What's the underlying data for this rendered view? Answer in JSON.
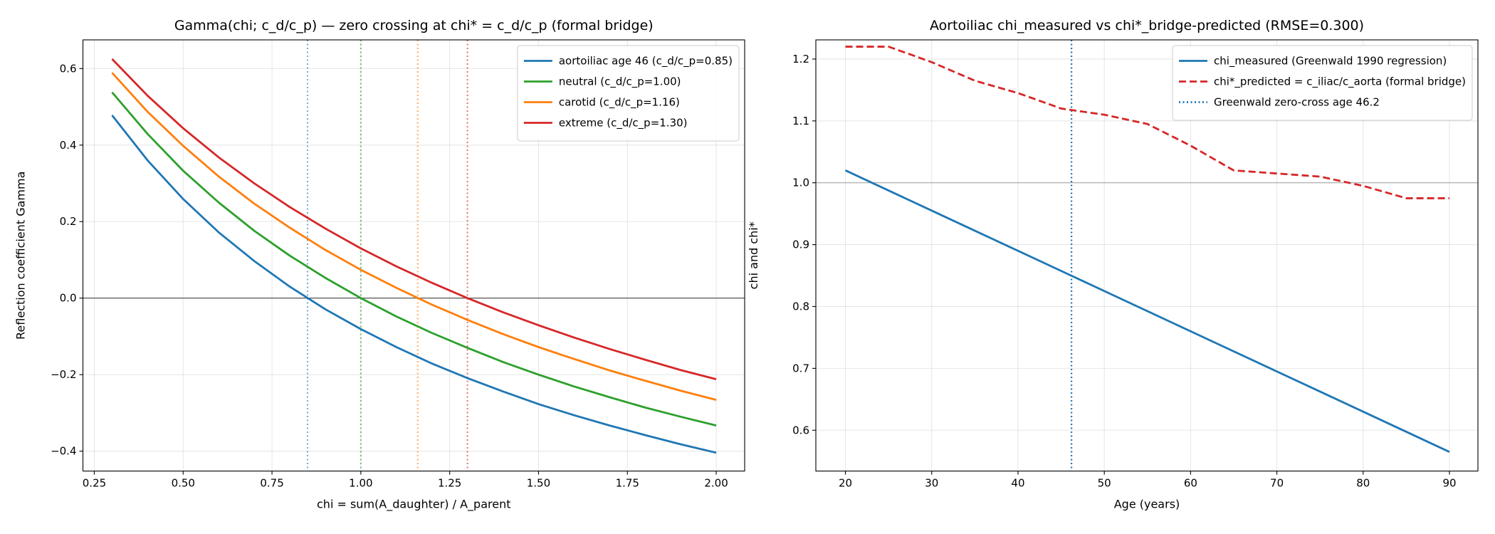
{
  "chart_data": [
    {
      "type": "line",
      "title": "Gamma(chi; c_d/c_p) — zero crossing at chi* = c_d/c_p (formal bridge)",
      "xlabel": "chi = sum(A_daughter) / A_parent",
      "ylabel": "Reflection coefficient Gamma",
      "x": [
        0.3,
        0.4,
        0.5,
        0.6,
        0.7,
        0.8,
        0.9,
        1.0,
        1.1,
        1.2,
        1.3,
        1.4,
        1.5,
        1.6,
        1.7,
        1.8,
        1.9,
        2.0
      ],
      "series": [
        {
          "name": "aortoiliac age 46 (c_d/c_p=0.85)",
          "color": "#1f77b4",
          "linestyle": "solid",
          "values": [
            0.478,
            0.36,
            0.259,
            0.172,
            0.097,
            0.03,
            -0.029,
            -0.081,
            -0.128,
            -0.171,
            -0.209,
            -0.244,
            -0.277,
            -0.306,
            -0.333,
            -0.358,
            -0.382,
            -0.404
          ]
        },
        {
          "name": "neutral (c_d/c_p=1.00)",
          "color": "#2ca02c",
          "linestyle": "solid",
          "values": [
            0.538,
            0.429,
            0.333,
            0.25,
            0.176,
            0.111,
            0.053,
            0,
            -0.048,
            -0.091,
            -0.13,
            -0.167,
            -0.2,
            -0.231,
            -0.259,
            -0.286,
            -0.31,
            -0.333
          ]
        },
        {
          "name": "carotid (c_d/c_p=1.16)",
          "color": "#ff7f0e",
          "linestyle": "solid",
          "values": [
            0.589,
            0.487,
            0.398,
            0.318,
            0.247,
            0.184,
            0.126,
            0.074,
            0.027,
            -0.017,
            -0.057,
            -0.094,
            -0.128,
            -0.159,
            -0.189,
            -0.216,
            -0.242,
            -0.266
          ]
        },
        {
          "name": "extreme (c_d/c_p=1.30)",
          "color": "#d62728",
          "linestyle": "solid",
          "values": [
            0.625,
            0.529,
            0.444,
            0.368,
            0.3,
            0.238,
            0.182,
            0.13,
            0.083,
            0.04,
            0,
            -0.037,
            -0.071,
            -0.103,
            -0.133,
            -0.161,
            -0.188,
            -0.212
          ]
        }
      ],
      "vlines": [
        {
          "x": 0.85,
          "color": "#1f77b4",
          "linestyle": "dotted",
          "alpha": 0.6
        },
        {
          "x": 1.0,
          "color": "#2ca02c",
          "linestyle": "dotted",
          "alpha": 0.6
        },
        {
          "x": 1.16,
          "color": "#ff7f0e",
          "linestyle": "dotted",
          "alpha": 0.6
        },
        {
          "x": 1.3,
          "color": "#d62728",
          "linestyle": "dotted",
          "alpha": 0.6
        }
      ],
      "hlines": [
        {
          "y": 0,
          "color": "#000000",
          "alpha": 0.7
        }
      ],
      "xlim": [
        0.218,
        2.08
      ],
      "xticks": [
        0.25,
        {
          "value": 0.5,
          "label": "0.50"
        },
        0.75,
        {
          "value": 1.0,
          "label": "1.00"
        },
        1.25,
        {
          "value": 1.5,
          "label": "1.50"
        },
        1.75,
        {
          "value": 2.0,
          "label": "2.00"
        }
      ],
      "ylim": [
        -0.452,
        0.675
      ],
      "yticks": [
        {
          "value": -0.4,
          "label": "−0.4"
        },
        {
          "value": -0.2,
          "label": "−0.2"
        },
        {
          "value": 0,
          "label": "0.0"
        },
        0.2,
        0.4,
        0.6
      ],
      "grid": true,
      "legend": "upper right"
    },
    {
      "type": "line",
      "title": "Aortoiliac chi_measured vs chi*_bridge-predicted (RMSE=0.300)",
      "xlabel": "Age (years)",
      "ylabel": "chi and chi*",
      "x": [
        20,
        25,
        30,
        35,
        40,
        45,
        50,
        55,
        60,
        65,
        70,
        75,
        80,
        85,
        90
      ],
      "series": [
        {
          "name": "chi_measured (Greenwald 1990 regression)",
          "color": "#1f77b4",
          "linestyle": "solid",
          "values": [
            1.02,
            0.9875,
            0.955,
            0.9225,
            0.89,
            0.8575,
            0.825,
            0.7925,
            0.76,
            0.7275,
            0.695,
            0.6625,
            0.63,
            0.5975,
            0.565
          ]
        },
        {
          "name": "chi*_predicted = c_iliac/c_aorta (formal bridge)",
          "color": "#d62728",
          "linestyle": "dashed",
          "values": [
            1.22,
            1.22,
            1.195,
            1.165,
            1.145,
            1.12,
            1.11,
            1.095,
            1.06,
            1.02,
            1.015,
            1.01,
            0.995,
            0.975,
            0.975
          ]
        }
      ],
      "vlines": [
        {
          "x": 46.2,
          "color": "#1f77b4",
          "linestyle": "dotted",
          "alpha": 1,
          "name": "Greenwald zero-cross age 46.2"
        }
      ],
      "hlines": [
        {
          "y": 1.0,
          "color": "#999999",
          "alpha": 0.8
        }
      ],
      "xlim": [
        16.57,
        93.3
      ],
      "xticks": [
        20,
        30,
        40,
        50,
        60,
        70,
        80,
        90
      ],
      "ylim": [
        0.534,
        1.231
      ],
      "yticks": [
        0.6,
        0.7,
        0.8,
        0.9,
        {
          "value": 1.0,
          "label": "1.0"
        },
        1.1,
        1.2
      ],
      "grid": true,
      "legend": "upper right"
    }
  ]
}
